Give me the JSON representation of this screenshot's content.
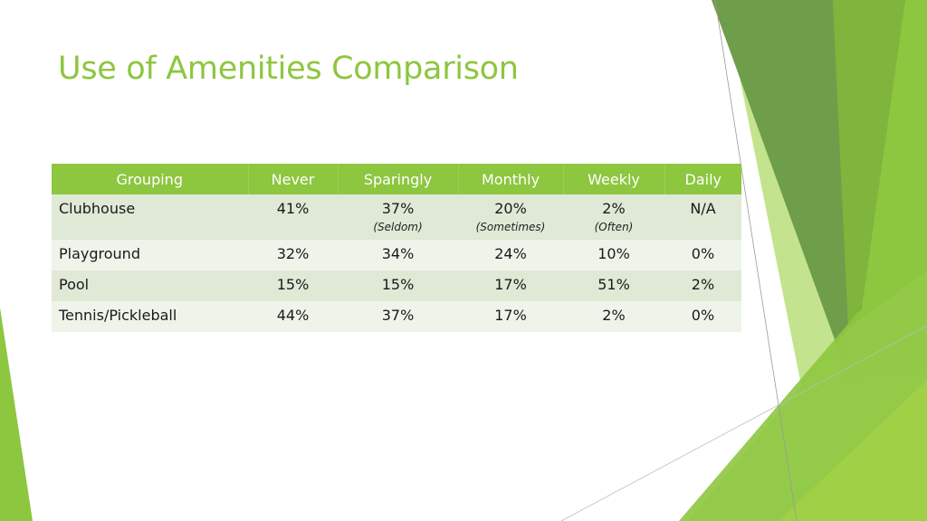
{
  "title": "Use of Amenities Comparison",
  "colors": {
    "accent": "#8dc63f",
    "row_dark": "#dfe9d6",
    "row_light": "#eff4ea"
  },
  "table": {
    "headers": [
      "Grouping",
      "Never",
      "Sparingly",
      "Monthly",
      "Weekly",
      "Daily"
    ],
    "rows": [
      {
        "cells": [
          "Clubhouse",
          "41%",
          "37%",
          "20%",
          "2%",
          "N/A"
        ],
        "notes": [
          "",
          "",
          "(Seldom)",
          "(Sometimes)",
          "(Often)",
          ""
        ]
      },
      {
        "cells": [
          "Playground",
          "32%",
          "34%",
          "24%",
          "10%",
          "0%"
        ]
      },
      {
        "cells": [
          "Pool",
          "15%",
          "15%",
          "17%",
          "51%",
          "2%"
        ]
      },
      {
        "cells": [
          "Tennis/Pickleball",
          "44%",
          "37%",
          "17%",
          "2%",
          "0%"
        ]
      }
    ]
  }
}
